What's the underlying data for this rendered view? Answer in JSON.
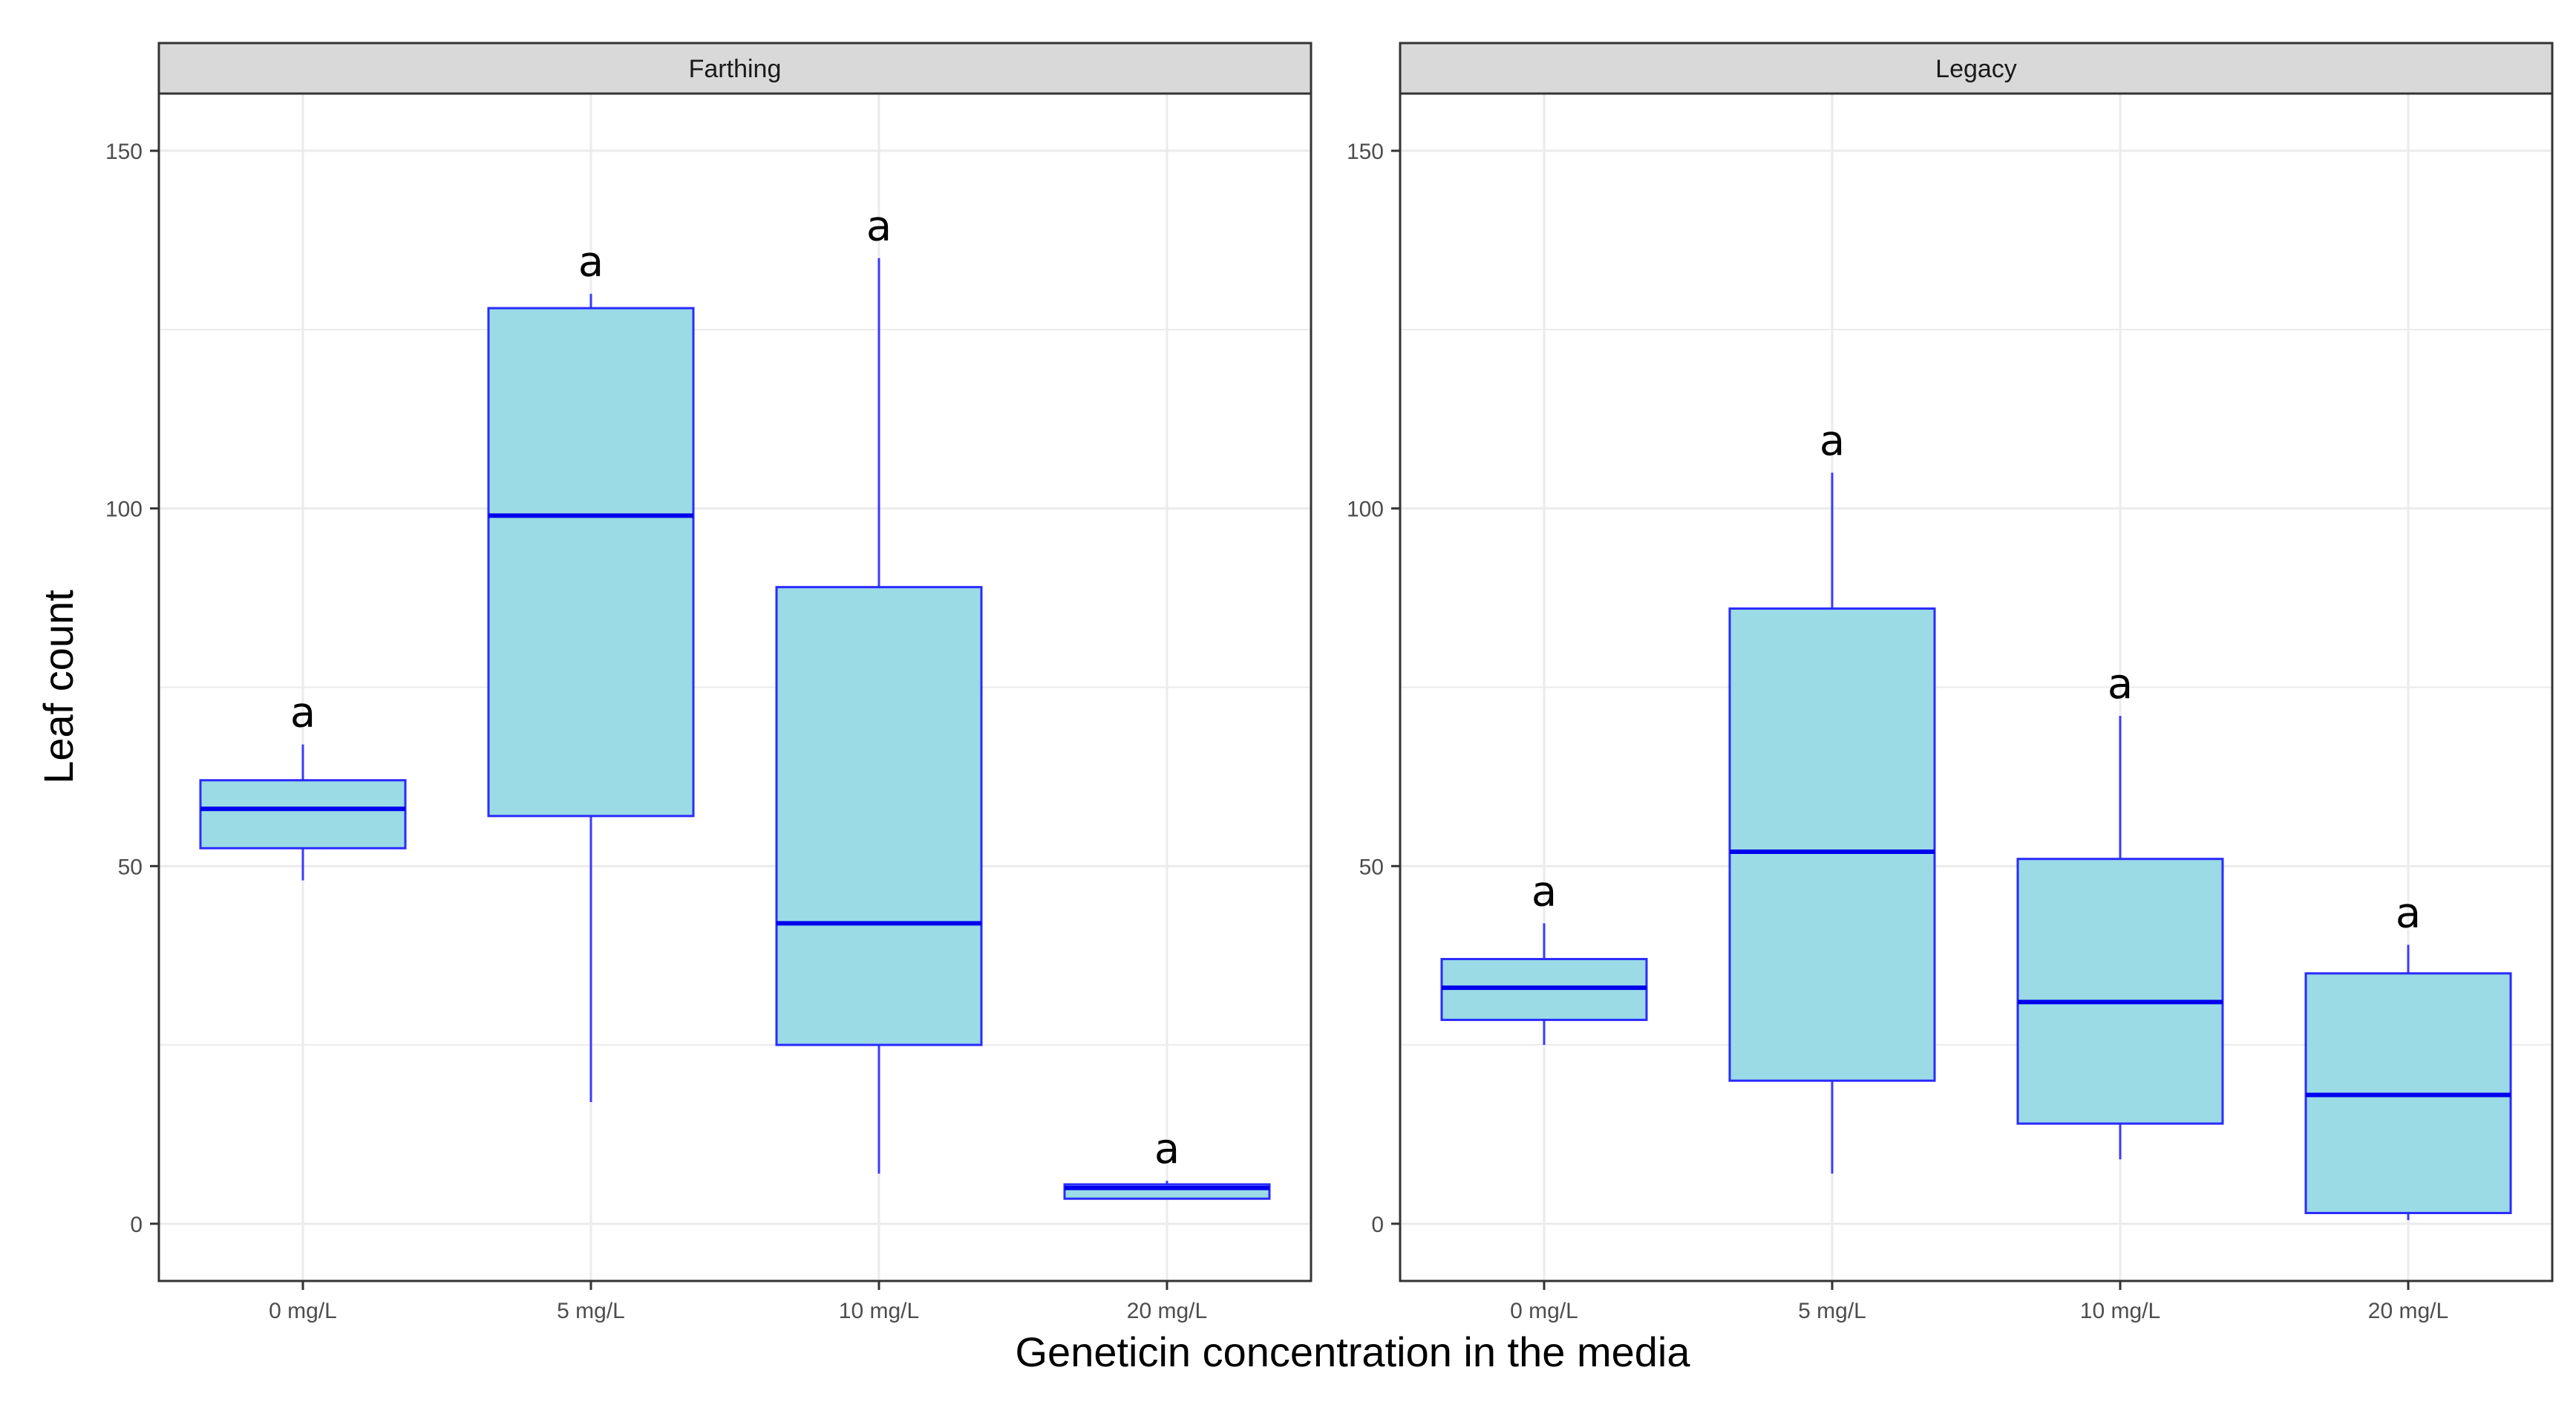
{
  "chart_data": {
    "type": "box",
    "xlabel": "Geneticin concentration in the media",
    "ylabel": "Leaf count",
    "ylim": [
      -8,
      158
    ],
    "yticks": [
      0,
      50,
      100,
      150
    ],
    "categories": [
      "0 mg/L",
      "5 mg/L",
      "10 mg/L",
      "20 mg/L"
    ],
    "colors": {
      "box_fill": "#9adbe6",
      "box_stroke": "#2b2bff",
      "median": "#0000ee",
      "whisker": "#3a3aff",
      "grid": "#ebebeb",
      "strip_fill": "#d9d9d9",
      "panel_border": "#333333"
    },
    "panels": [
      {
        "name": "Farthing",
        "boxes": [
          {
            "category": "0 mg/L",
            "min": 48,
            "q1": 52.5,
            "median": 58,
            "q3": 62,
            "max": 67,
            "label": "a"
          },
          {
            "category": "5 mg/L",
            "min": 17,
            "q1": 57,
            "median": 99,
            "q3": 128,
            "max": 130,
            "label": "a"
          },
          {
            "category": "10 mg/L",
            "min": 7,
            "q1": 25,
            "median": 42,
            "q3": 89,
            "max": 135,
            "label": "a"
          },
          {
            "category": "20 mg/L",
            "min": 3.5,
            "q1": 3.5,
            "median": 5,
            "q3": 5.5,
            "max": 6,
            "label": "a"
          }
        ]
      },
      {
        "name": "Legacy",
        "boxes": [
          {
            "category": "0 mg/L",
            "min": 25,
            "q1": 28.5,
            "median": 33,
            "q3": 37,
            "max": 42,
            "label": "a"
          },
          {
            "category": "5 mg/L",
            "min": 7,
            "q1": 20,
            "median": 52,
            "q3": 86,
            "max": 105,
            "label": "a"
          },
          {
            "category": "10 mg/L",
            "min": 9,
            "q1": 14,
            "median": 31,
            "q3": 51,
            "max": 71,
            "label": "a"
          },
          {
            "category": "20 mg/L",
            "min": 0.5,
            "q1": 1.5,
            "median": 18,
            "q3": 35,
            "max": 39,
            "label": "a"
          }
        ]
      }
    ]
  }
}
